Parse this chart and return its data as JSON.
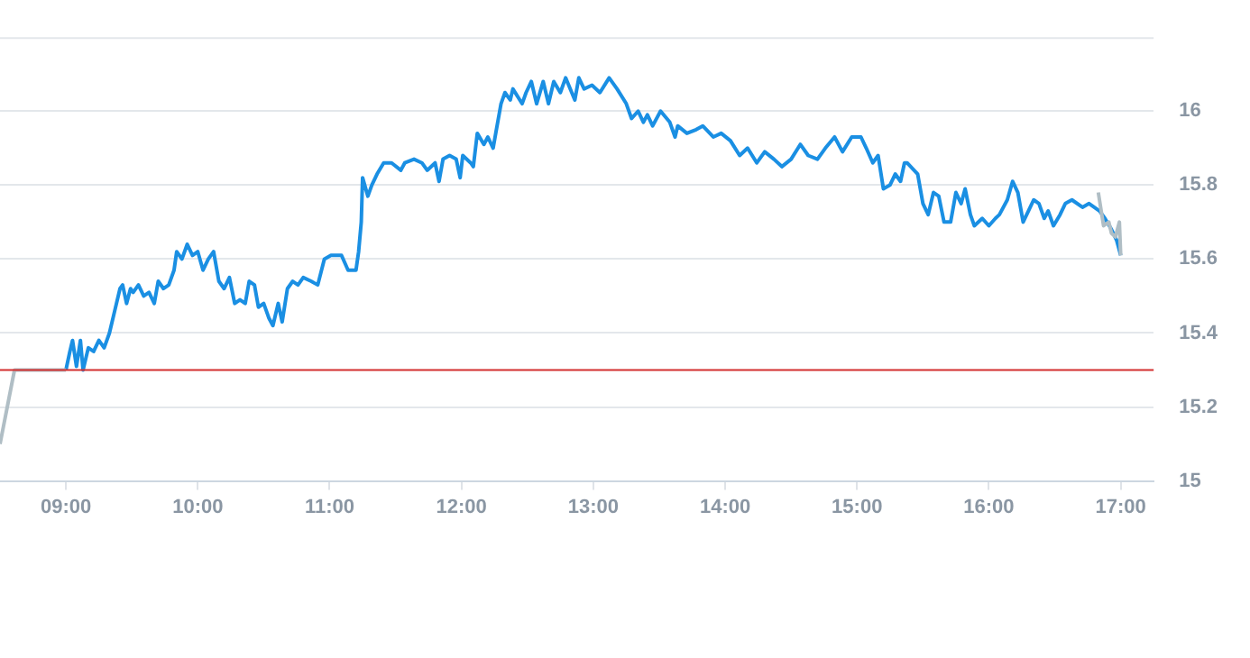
{
  "chart_data": {
    "type": "line",
    "xlim": [
      8.5,
      17.25
    ],
    "ylim": [
      15,
      16.2
    ],
    "xticks": [
      {
        "value": 9,
        "label": "09:00"
      },
      {
        "value": 10,
        "label": "10:00"
      },
      {
        "value": 11,
        "label": "11:00"
      },
      {
        "value": 12,
        "label": "12:00"
      },
      {
        "value": 13,
        "label": "13:00"
      },
      {
        "value": 14,
        "label": "14:00"
      },
      {
        "value": 15,
        "label": "15:00"
      },
      {
        "value": 16,
        "label": "16:00"
      },
      {
        "value": 17,
        "label": "17:00"
      }
    ],
    "yticks": [
      15,
      15.2,
      15.4,
      15.6,
      15.8,
      16
    ],
    "grid": "y",
    "legend": false,
    "marker": "none",
    "line_style": "solid",
    "ref_lines": [
      {
        "axis": "y",
        "value": 15.3,
        "color": "#d32f2f"
      }
    ],
    "series": [
      {
        "color": "#b0bec5",
        "x": [
          8.5,
          8.61,
          9.0
        ],
        "values": [
          15.1,
          15.3,
          15.3
        ]
      },
      {
        "color": "#b0bec5",
        "x": [
          16.83,
          16.87,
          16.91,
          16.93,
          16.96,
          16.99,
          17.0
        ],
        "values": [
          15.78,
          15.69,
          15.7,
          15.67,
          15.66,
          15.7,
          15.61
        ]
      },
      {
        "color": "#1a8fe3",
        "x": [
          9.0,
          9.03,
          9.05,
          9.08,
          9.11,
          9.13,
          9.17,
          9.21,
          9.25,
          9.29,
          9.33,
          9.37,
          9.41,
          9.43,
          9.46,
          9.49,
          9.51,
          9.55,
          9.59,
          9.63,
          9.67,
          9.7,
          9.74,
          9.78,
          9.82,
          9.84,
          9.88,
          9.92,
          9.96,
          10.0,
          10.04,
          10.08,
          10.12,
          10.16,
          10.2,
          10.24,
          10.28,
          10.32,
          10.36,
          10.39,
          10.43,
          10.46,
          10.5,
          10.54,
          10.57,
          10.61,
          10.64,
          10.68,
          10.72,
          10.76,
          10.8,
          10.86,
          10.91,
          10.96,
          11.01,
          11.09,
          11.14,
          11.2,
          11.22,
          11.24,
          11.25,
          11.29,
          11.32,
          11.36,
          11.41,
          11.47,
          11.54,
          11.57,
          11.64,
          11.7,
          11.74,
          11.8,
          11.83,
          11.86,
          11.91,
          11.96,
          11.99,
          12.01,
          12.07,
          12.09,
          12.12,
          12.17,
          12.2,
          12.24,
          12.26,
          12.3,
          12.33,
          12.37,
          12.39,
          12.46,
          12.49,
          12.53,
          12.57,
          12.62,
          12.66,
          12.7,
          12.75,
          12.79,
          12.86,
          12.89,
          12.93,
          12.99,
          13.05,
          13.12,
          13.18,
          13.25,
          13.29,
          13.34,
          13.38,
          13.41,
          13.45,
          13.51,
          13.58,
          13.62,
          13.64,
          13.71,
          13.78,
          13.83,
          13.91,
          13.97,
          14.04,
          14.11,
          14.17,
          14.24,
          14.3,
          14.37,
          14.43,
          14.5,
          14.57,
          14.63,
          14.7,
          14.76,
          14.83,
          14.89,
          14.96,
          15.03,
          15.07,
          15.12,
          15.16,
          15.2,
          15.25,
          15.29,
          15.33,
          15.36,
          15.38,
          15.46,
          15.5,
          15.54,
          15.58,
          15.62,
          15.66,
          15.71,
          15.75,
          15.79,
          15.82,
          15.86,
          15.89,
          15.95,
          16.0,
          16.05,
          16.08,
          16.14,
          16.18,
          16.22,
          16.26,
          16.3,
          16.34,
          16.38,
          16.42,
          16.45,
          16.49,
          16.54,
          16.58,
          16.63,
          16.71,
          16.76,
          16.84,
          16.88,
          16.93,
          16.97,
          17.0
        ],
        "values": [
          15.3,
          15.35,
          15.38,
          15.31,
          15.38,
          15.3,
          15.36,
          15.35,
          15.38,
          15.36,
          15.4,
          15.46,
          15.52,
          15.53,
          15.48,
          15.52,
          15.51,
          15.53,
          15.5,
          15.51,
          15.48,
          15.54,
          15.52,
          15.53,
          15.57,
          15.62,
          15.6,
          15.64,
          15.61,
          15.62,
          15.57,
          15.6,
          15.62,
          15.54,
          15.52,
          15.55,
          15.48,
          15.49,
          15.48,
          15.54,
          15.53,
          15.47,
          15.48,
          15.44,
          15.42,
          15.48,
          15.43,
          15.52,
          15.54,
          15.53,
          15.55,
          15.54,
          15.53,
          15.6,
          15.61,
          15.61,
          15.57,
          15.57,
          15.62,
          15.7,
          15.82,
          15.77,
          15.8,
          15.83,
          15.86,
          15.86,
          15.84,
          15.86,
          15.87,
          15.86,
          15.84,
          15.86,
          15.81,
          15.87,
          15.88,
          15.87,
          15.82,
          15.88,
          15.86,
          15.85,
          15.94,
          15.91,
          15.93,
          15.9,
          15.94,
          16.02,
          16.05,
          16.03,
          16.06,
          16.02,
          16.05,
          16.08,
          16.02,
          16.08,
          16.02,
          16.08,
          16.05,
          16.09,
          16.03,
          16.09,
          16.06,
          16.07,
          16.05,
          16.09,
          16.06,
          16.02,
          15.98,
          16.0,
          15.97,
          15.99,
          15.96,
          16.0,
          15.97,
          15.93,
          15.96,
          15.94,
          15.95,
          15.96,
          15.93,
          15.94,
          15.92,
          15.88,
          15.9,
          15.86,
          15.89,
          15.87,
          15.85,
          15.87,
          15.91,
          15.88,
          15.87,
          15.9,
          15.93,
          15.89,
          15.93,
          15.93,
          15.9,
          15.86,
          15.88,
          15.79,
          15.8,
          15.83,
          15.81,
          15.86,
          15.86,
          15.83,
          15.75,
          15.72,
          15.78,
          15.77,
          15.7,
          15.7,
          15.78,
          15.75,
          15.79,
          15.72,
          15.69,
          15.71,
          15.69,
          15.71,
          15.72,
          15.76,
          15.81,
          15.78,
          15.7,
          15.73,
          15.76,
          15.75,
          15.71,
          15.73,
          15.69,
          15.72,
          15.75,
          15.76,
          15.74,
          15.75,
          15.73,
          15.71,
          15.68,
          15.65,
          15.61
        ]
      }
    ]
  }
}
